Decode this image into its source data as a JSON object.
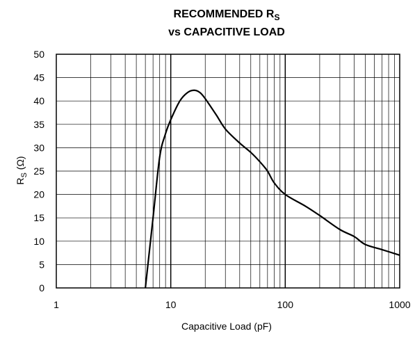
{
  "chart_data": {
    "type": "line",
    "title_line1": "RECOMMENDED R",
    "title_line1_sub": "S",
    "title_line2": "vs CAPACITIVE LOAD",
    "xlabel": "Capacitive Load (pF)",
    "ylabel_main": "R",
    "ylabel_sub": "S",
    "ylabel_unit": " (Ω)",
    "xscale": "log",
    "xlim": [
      1,
      1000
    ],
    "ylim": [
      0,
      50
    ],
    "x_tick_labels": [
      "1",
      "10",
      "100",
      "1000"
    ],
    "x_tick_values": [
      1,
      10,
      100,
      1000
    ],
    "y_tick_labels": [
      "0",
      "5",
      "10",
      "15",
      "20",
      "25",
      "30",
      "35",
      "40",
      "45",
      "50"
    ],
    "y_tick_values": [
      0,
      5,
      10,
      15,
      20,
      25,
      30,
      35,
      40,
      45,
      50
    ],
    "grid": true,
    "series": [
      {
        "x": [
          6,
          7,
          8,
          9,
          10,
          12,
          14,
          16,
          18,
          20,
          25,
          30,
          40,
          50,
          60,
          70,
          80,
          100,
          150,
          200,
          300,
          400,
          500,
          700,
          1000
        ],
        "y": [
          0,
          15,
          28,
          33,
          36,
          40,
          41.8,
          42.3,
          41.8,
          40.5,
          37,
          34,
          31,
          29,
          27,
          25,
          22.5,
          20,
          17.5,
          15.5,
          12.5,
          11,
          9.3,
          8.2,
          7
        ],
        "color": "#000000"
      }
    ]
  }
}
